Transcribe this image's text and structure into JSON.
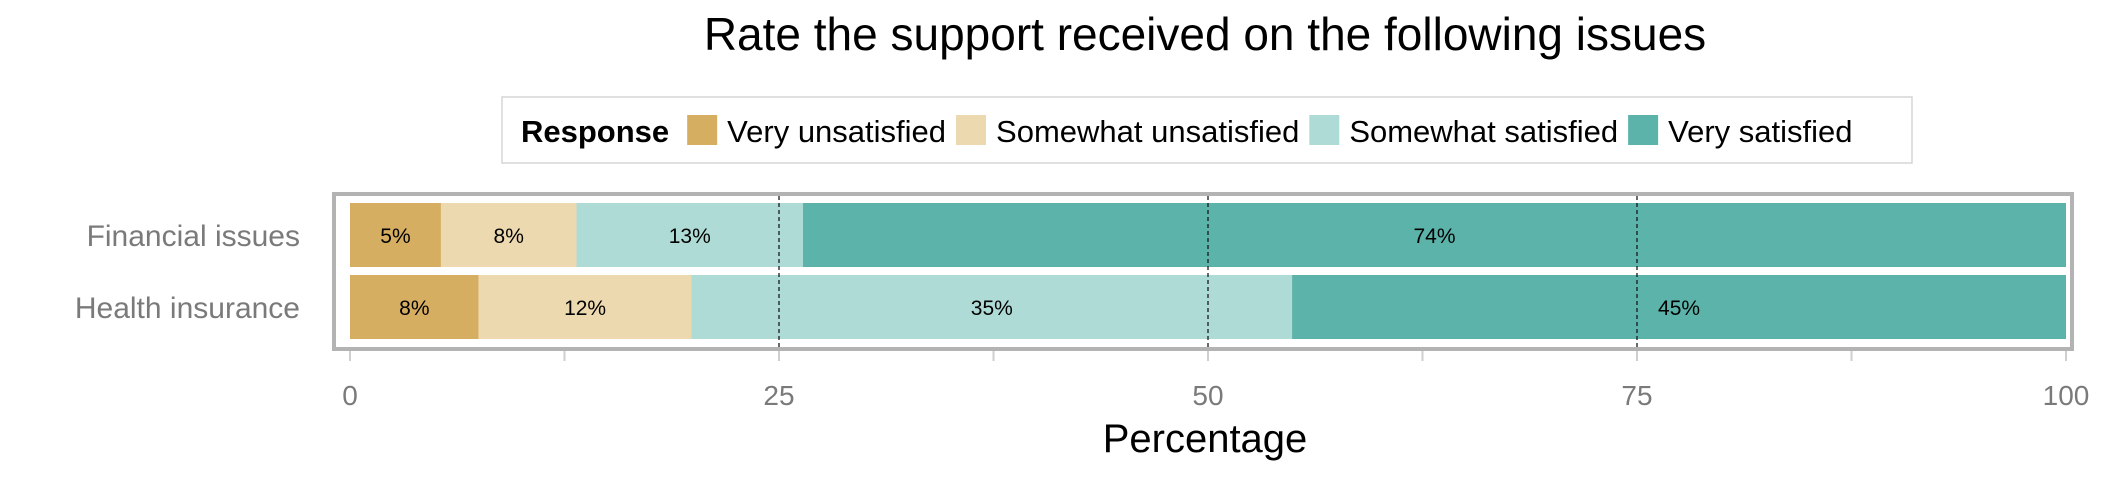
{
  "chart_data": {
    "type": "bar",
    "orientation": "horizontal",
    "stacked": true,
    "title": "Rate the support received on the following issues",
    "xlabel": "Percentage",
    "ylabel": "",
    "xlim": [
      0,
      100
    ],
    "x_ticks": [
      "0",
      "25",
      "50",
      "75",
      "100"
    ],
    "gridlines_dashed_at": [
      25,
      50,
      75
    ],
    "legend": {
      "title": "Response",
      "position": "top-center",
      "entries": [
        "Very unsatisfied",
        "Somewhat unsatisfied",
        "Somewhat satisfied",
        "Very satisfied"
      ]
    },
    "categories": [
      "Financial issues",
      "Health insurance"
    ],
    "series": [
      {
        "name": "Very unsatisfied",
        "color": "#d6ae62",
        "values": [
          5.3,
          7.5
        ],
        "labels": [
          "5%",
          "8%"
        ]
      },
      {
        "name": "Somewhat unsatisfied",
        "color": "#ecd9b0",
        "values": [
          7.9,
          12.4
        ],
        "labels": [
          "8%",
          "12%"
        ]
      },
      {
        "name": "Somewhat satisfied",
        "color": "#afdbd6",
        "values": [
          13.2,
          35.0
        ],
        "labels": [
          "13%",
          "35%"
        ]
      },
      {
        "name": "Very satisfied",
        "color": "#5bb3aa",
        "values": [
          73.6,
          45.1
        ],
        "labels": [
          "74%",
          "45%"
        ]
      }
    ]
  }
}
